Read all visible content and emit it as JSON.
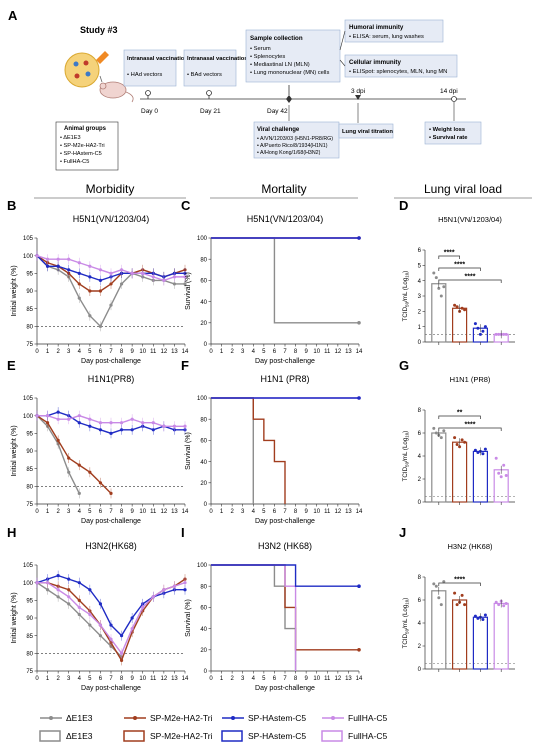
{
  "colors": {
    "dE1E3": "#8c8c8c",
    "m2e": "#a13d1e",
    "hastem": "#1f2bc4",
    "fullha": "#c98ae6",
    "box_fill": "#e6ebf5",
    "box_stroke": "#9bb3d4"
  },
  "panelA": {
    "label": "A",
    "study": "Study #3",
    "animal_groups_title": "Animal groups",
    "animal_groups": [
      "ΔE1E3",
      "SP-M2e-HA2-Tri",
      "SP-HAstem-C5",
      "FullHA-C5"
    ],
    "vacc1_title": "Intranasal vaccination",
    "vacc1_item": "HAd vectors",
    "vacc1_day": "Day 0",
    "vacc2_title": "Intranasal vaccination",
    "vacc2_item": "BAd vectors",
    "vacc2_day": "Day 21",
    "sample_title": "Sample collection",
    "sample_items": [
      "Serum",
      "Splenocytes",
      "Mediastinal LN (MLN)",
      "Lung mononuclear (MN) cells"
    ],
    "sample_day": "Day 42",
    "humoral_title": "Humoral immunity",
    "humoral_item": "ELISA: serum, lung washes",
    "cellular_title": "Cellular immunity",
    "cellular_item": "ELISpot: splenocytes, MLN, lung MN",
    "challenge_title": "Viral challenge",
    "challenge_items": [
      "A/VN/1203/03 (H5N1-PR8/RG)",
      "A/Puerto Rico/8/1934(H1N1)",
      "A/Hong Kong/1/68(H3N2)"
    ],
    "titration_label": "Lung viral titration",
    "dpi3": "3 dpi",
    "dpi14": "14 dpi",
    "outcome_items": [
      "Weight loss",
      "Survival rate"
    ]
  },
  "headers": [
    "Morbidity",
    "Mortality",
    "Lung viral load"
  ],
  "legend": {
    "line": [
      "ΔE1E3",
      "SP-M2e-HA2-Tri",
      "SP-HAstem-C5",
      "FullHA-C5"
    ],
    "bar": [
      "ΔE1E3",
      "SP-M2e-HA2-Tri",
      "SP-HAstem-C5",
      "FullHA-C5"
    ]
  },
  "chart_data": [
    {
      "panel": "B",
      "type": "line",
      "title": "H5N1(VN/1203/04)",
      "xlabel": "Day post-challenge",
      "ylabel": "Initial weight (%)",
      "xlim": [
        0,
        14
      ],
      "ylim": [
        75,
        105
      ],
      "yticks": [
        75,
        80,
        85,
        90,
        95,
        100,
        105
      ],
      "reference_line": 80,
      "series": [
        {
          "name": "ΔE1E3",
          "x": [
            0,
            1,
            2,
            3,
            4,
            5,
            6,
            7,
            8,
            9,
            10,
            11,
            12,
            13,
            14
          ],
          "values": [
            100,
            97,
            96,
            94,
            88,
            83,
            80,
            86,
            92,
            95,
            94,
            93,
            93,
            92,
            92
          ]
        },
        {
          "name": "SP-M2e-HA2-Tri",
          "x": [
            0,
            1,
            2,
            3,
            4,
            5,
            6,
            7,
            8,
            9,
            10,
            11,
            12,
            13,
            14
          ],
          "values": [
            100,
            98,
            97,
            95,
            92,
            90,
            90,
            92,
            95,
            95,
            96,
            95,
            94,
            95,
            96
          ]
        },
        {
          "name": "SP-HAstem-C5",
          "x": [
            0,
            1,
            2,
            3,
            4,
            5,
            6,
            7,
            8,
            9,
            10,
            11,
            12,
            13,
            14
          ],
          "values": [
            100,
            97,
            97,
            96,
            95,
            94,
            93,
            94,
            95,
            95,
            95,
            95,
            94,
            95,
            95
          ]
        },
        {
          "name": "FullHA-C5",
          "x": [
            0,
            1,
            2,
            3,
            4,
            5,
            6,
            7,
            8,
            9,
            10,
            11,
            12,
            13,
            14
          ],
          "values": [
            100,
            99,
            99,
            99,
            98,
            97,
            96,
            95,
            96,
            95,
            95,
            94,
            93,
            94,
            94
          ]
        }
      ]
    },
    {
      "panel": "C",
      "type": "line",
      "title": "H5N1(VN/1203/04)",
      "xlabel": "Day post-challenge",
      "ylabel": "Survival (%)",
      "xlim": [
        0,
        14
      ],
      "ylim": [
        0,
        100
      ],
      "yticks": [
        0,
        20,
        40,
        60,
        80,
        100
      ],
      "step": true,
      "series": [
        {
          "name": "ΔE1E3",
          "x": [
            0,
            6,
            6,
            14
          ],
          "values": [
            100,
            100,
            20,
            20
          ]
        },
        {
          "name": "SP-M2e-HA2-Tri",
          "x": [
            0,
            14
          ],
          "values": [
            100,
            100
          ]
        },
        {
          "name": "FullHA-C5",
          "x": [
            0,
            14
          ],
          "values": [
            100,
            100
          ]
        },
        {
          "name": "SP-HAstem-C5",
          "x": [
            0,
            14
          ],
          "values": [
            100,
            100
          ]
        }
      ]
    },
    {
      "panel": "D",
      "type": "bar",
      "title": "H5N1(VN/1203/04)",
      "ylabel": "TCID50/mL (Log10)",
      "ylim": [
        0,
        6
      ],
      "yticks": [
        0,
        1,
        2,
        3,
        4,
        5,
        6
      ],
      "lod": 0.5,
      "categories": [
        "ΔE1E3",
        "SP-M2e-HA2-Tri",
        "SP-HAstem-C5",
        "FullHA-C5"
      ],
      "values": [
        3.8,
        2.2,
        0.9,
        0.5
      ],
      "points": [
        [
          4.5,
          4.2,
          3.5,
          3.0,
          3.6
        ],
        [
          2.4,
          2.3,
          2.0,
          2.2,
          2.1
        ],
        [
          1.2,
          0.9,
          0.5,
          0.7,
          1.0
        ],
        [
          0.5,
          0.5,
          0.5,
          0.5,
          0.5
        ]
      ],
      "significance": [
        {
          "pair": [
            0,
            1
          ],
          "label": "****"
        },
        {
          "pair": [
            0,
            2
          ],
          "label": "****"
        },
        {
          "pair": [
            0,
            3
          ],
          "label": "****"
        }
      ]
    },
    {
      "panel": "E",
      "type": "line",
      "title": "H1N1(PR8)",
      "xlabel": "Day post-challenge",
      "ylabel": "Initial weight (%)",
      "xlim": [
        0,
        14
      ],
      "ylim": [
        75,
        105
      ],
      "yticks": [
        75,
        80,
        85,
        90,
        95,
        100,
        105
      ],
      "reference_line": 80,
      "series": [
        {
          "name": "ΔE1E3",
          "x": [
            0,
            1,
            2,
            3,
            4
          ],
          "values": [
            100,
            97,
            92,
            84,
            78
          ]
        },
        {
          "name": "SP-M2e-HA2-Tri",
          "x": [
            0,
            1,
            2,
            3,
            4,
            5,
            6,
            7
          ],
          "values": [
            100,
            98,
            93,
            88,
            86,
            84,
            81,
            78
          ]
        },
        {
          "name": "SP-HAstem-C5",
          "x": [
            0,
            1,
            2,
            3,
            4,
            5,
            6,
            7,
            8,
            9,
            10,
            11,
            12,
            13,
            14
          ],
          "values": [
            100,
            100,
            101,
            100,
            98,
            97,
            96,
            95,
            96,
            96,
            97,
            96,
            97,
            96,
            96
          ]
        },
        {
          "name": "FullHA-C5",
          "x": [
            0,
            1,
            2,
            3,
            4,
            5,
            6,
            7,
            8,
            9,
            10,
            11,
            12,
            13,
            14
          ],
          "values": [
            100,
            100,
            99,
            99,
            100,
            99,
            98,
            98,
            98,
            99,
            98,
            98,
            97,
            97,
            97
          ]
        }
      ]
    },
    {
      "panel": "F",
      "type": "line",
      "title": "H1N1 (PR8)",
      "xlabel": "Day post-challenge",
      "ylabel": "Survival (%)",
      "xlim": [
        0,
        14
      ],
      "ylim": [
        0,
        100
      ],
      "yticks": [
        0,
        20,
        40,
        60,
        80,
        100
      ],
      "step": true,
      "series": [
        {
          "name": "ΔE1E3",
          "x": [
            0,
            4,
            4
          ],
          "values": [
            100,
            100,
            0
          ]
        },
        {
          "name": "SP-M2e-HA2-Tri",
          "x": [
            0,
            4,
            4,
            5,
            5,
            6,
            6,
            7,
            7
          ],
          "values": [
            100,
            100,
            80,
            80,
            60,
            60,
            40,
            40,
            0
          ]
        },
        {
          "name": "FullHA-C5",
          "x": [
            0,
            14
          ],
          "values": [
            100,
            100
          ]
        },
        {
          "name": "SP-HAstem-C5",
          "x": [
            0,
            14
          ],
          "values": [
            100,
            100
          ]
        }
      ]
    },
    {
      "panel": "G",
      "type": "bar",
      "title": "H1N1 (PR8)",
      "ylabel": "TCID50/mL (Log10)",
      "ylim": [
        0,
        8
      ],
      "yticks": [
        0,
        2,
        4,
        6,
        8
      ],
      "lod": 0.5,
      "categories": [
        "ΔE1E3",
        "SP-M2e-HA2-Tri",
        "SP-HAstem-C5",
        "FullHA-C5"
      ],
      "values": [
        6.0,
        5.2,
        4.4,
        2.8
      ],
      "points": [
        [
          6.4,
          6.0,
          5.8,
          5.6,
          6.2
        ],
        [
          5.6,
          5.0,
          4.8,
          5.4,
          5.2
        ],
        [
          4.5,
          4.3,
          4.4,
          4.2,
          4.6
        ],
        [
          3.8,
          2.5,
          2.2,
          3.2,
          2.3
        ]
      ],
      "significance": [
        {
          "pair": [
            0,
            2
          ],
          "label": "**"
        },
        {
          "pair": [
            0,
            3
          ],
          "label": "****"
        }
      ]
    },
    {
      "panel": "H",
      "type": "line",
      "title": "H3N2(HK68)",
      "xlabel": "Day post-challenge",
      "ylabel": "Initial weight (%)",
      "xlim": [
        0,
        14
      ],
      "ylim": [
        75,
        105
      ],
      "yticks": [
        75,
        80,
        85,
        90,
        95,
        100,
        105
      ],
      "reference_line": 80,
      "series": [
        {
          "name": "ΔE1E3",
          "x": [
            0,
            1,
            2,
            3,
            4,
            5,
            6,
            7,
            8
          ],
          "values": [
            100,
            98,
            96,
            94,
            91,
            88,
            85,
            82,
            79
          ]
        },
        {
          "name": "SP-M2e-HA2-Tri",
          "x": [
            0,
            1,
            2,
            3,
            4,
            5,
            6,
            7,
            8,
            9,
            10,
            11,
            12,
            13,
            14
          ],
          "values": [
            100,
            100,
            99,
            98,
            95,
            92,
            88,
            83,
            78,
            86,
            92,
            96,
            98,
            99,
            101
          ]
        },
        {
          "name": "SP-HAstem-C5",
          "x": [
            0,
            1,
            2,
            3,
            4,
            5,
            6,
            7,
            8,
            9,
            10,
            11,
            12,
            13,
            14
          ],
          "values": [
            100,
            101,
            102,
            101,
            100,
            98,
            94,
            88,
            85,
            90,
            94,
            96,
            97,
            98,
            98
          ]
        },
        {
          "name": "FullHA-C5",
          "x": [
            0,
            1,
            2,
            3,
            4,
            5,
            6,
            7,
            8,
            9,
            10,
            11,
            12,
            13,
            14
          ],
          "values": [
            100,
            100,
            98,
            96,
            93,
            91,
            88,
            84,
            80,
            87,
            93,
            96,
            98,
            99,
            100
          ]
        }
      ]
    },
    {
      "panel": "I",
      "type": "line",
      "title": "H3N2 (HK68)",
      "xlabel": "Day post-challenge",
      "ylabel": "Survival (%)",
      "xlim": [
        0,
        14
      ],
      "ylim": [
        0,
        100
      ],
      "yticks": [
        0,
        20,
        40,
        60,
        80,
        100
      ],
      "step": true,
      "series": [
        {
          "name": "ΔE1E3",
          "x": [
            0,
            6,
            6,
            7,
            7,
            8,
            8
          ],
          "values": [
            100,
            100,
            80,
            80,
            40,
            40,
            0
          ]
        },
        {
          "name": "SP-M2e-HA2-Tri",
          "x": [
            0,
            7,
            7,
            8,
            8,
            14
          ],
          "values": [
            100,
            100,
            60,
            60,
            20,
            20
          ]
        },
        {
          "name": "FullHA-C5",
          "x": [
            0,
            7,
            7,
            8,
            8
          ],
          "values": [
            100,
            100,
            80,
            80,
            0
          ]
        },
        {
          "name": "SP-HAstem-C5",
          "x": [
            0,
            8,
            8,
            14
          ],
          "values": [
            100,
            100,
            80,
            80
          ]
        }
      ]
    },
    {
      "panel": "J",
      "type": "bar",
      "title": "H3N2 (HK68)",
      "ylabel": "TCID50/mL (Log10)",
      "ylim": [
        0,
        8
      ],
      "yticks": [
        0,
        2,
        4,
        6,
        8
      ],
      "lod": 0.5,
      "categories": [
        "ΔE1E3",
        "SP-M2e-HA2-Tri",
        "SP-HAstem-C5",
        "FullHA-C5"
      ],
      "values": [
        6.8,
        6.0,
        4.5,
        5.7
      ],
      "points": [
        [
          7.4,
          7.2,
          6.2,
          5.6,
          7.6
        ],
        [
          6.6,
          5.6,
          5.8,
          6.4,
          5.6
        ],
        [
          4.6,
          4.4,
          4.5,
          4.3,
          4.7
        ],
        [
          5.8,
          5.6,
          5.9,
          5.5,
          5.7
        ]
      ],
      "significance": [
        {
          "pair": [
            0,
            2
          ],
          "label": "****"
        }
      ]
    }
  ]
}
